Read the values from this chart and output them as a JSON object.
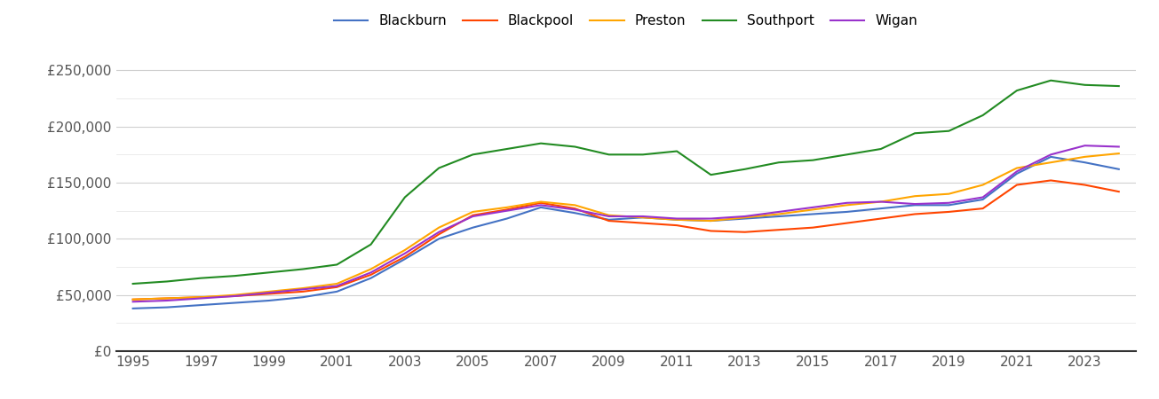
{
  "years": [
    1995,
    1996,
    1997,
    1998,
    1999,
    2000,
    2001,
    2002,
    2003,
    2004,
    2005,
    2006,
    2007,
    2008,
    2009,
    2010,
    2011,
    2012,
    2013,
    2014,
    2015,
    2016,
    2017,
    2018,
    2019,
    2020,
    2021,
    2022,
    2023,
    2024
  ],
  "series": {
    "Blackburn": [
      38000,
      39000,
      41000,
      43000,
      45000,
      48000,
      53000,
      65000,
      82000,
      100000,
      110000,
      118000,
      128000,
      123000,
      117000,
      119000,
      117000,
      116000,
      118000,
      120000,
      122000,
      124000,
      127000,
      130000,
      130000,
      135000,
      158000,
      173000,
      168000,
      162000
    ],
    "Blackpool": [
      46000,
      47000,
      48000,
      49000,
      51000,
      53000,
      57000,
      68000,
      84000,
      104000,
      121000,
      126000,
      132000,
      127000,
      116000,
      114000,
      112000,
      107000,
      106000,
      108000,
      110000,
      114000,
      118000,
      122000,
      124000,
      127000,
      148000,
      152000,
      148000,
      142000
    ],
    "Preston": [
      46000,
      47000,
      48000,
      50000,
      53000,
      56000,
      60000,
      73000,
      90000,
      110000,
      124000,
      128000,
      133000,
      130000,
      121000,
      119000,
      117000,
      116000,
      119000,
      122000,
      126000,
      130000,
      133000,
      138000,
      140000,
      148000,
      163000,
      168000,
      173000,
      176000
    ],
    "Southport": [
      60000,
      62000,
      65000,
      67000,
      70000,
      73000,
      77000,
      95000,
      137000,
      163000,
      175000,
      180000,
      185000,
      182000,
      175000,
      175000,
      178000,
      157000,
      162000,
      168000,
      170000,
      175000,
      180000,
      194000,
      196000,
      210000,
      232000,
      241000,
      237000,
      236000
    ],
    "Wigan": [
      44000,
      45000,
      47000,
      49000,
      52000,
      55000,
      58000,
      70000,
      87000,
      106000,
      120000,
      125000,
      130000,
      126000,
      120000,
      120000,
      118000,
      118000,
      120000,
      124000,
      128000,
      132000,
      133000,
      131000,
      132000,
      137000,
      160000,
      175000,
      183000,
      182000
    ]
  },
  "colors": {
    "Blackburn": "#4472C4",
    "Blackpool": "#FF4500",
    "Preston": "#FFA500",
    "Southport": "#228B22",
    "Wigan": "#9932CC"
  },
  "ylim": [
    0,
    270000
  ],
  "yticks": [
    0,
    50000,
    100000,
    150000,
    200000,
    250000
  ],
  "minor_yticks": [
    25000,
    75000,
    125000,
    175000,
    225000
  ],
  "ytick_labels": [
    "£0",
    "£50,000",
    "£100,000",
    "£150,000",
    "£200,000",
    "£250,000"
  ],
  "background_color": "#ffffff",
  "grid_color": "#d0d0d0",
  "minor_grid_color": "#e8e8e8",
  "legend_order": [
    "Blackburn",
    "Blackpool",
    "Preston",
    "Southport",
    "Wigan"
  ]
}
